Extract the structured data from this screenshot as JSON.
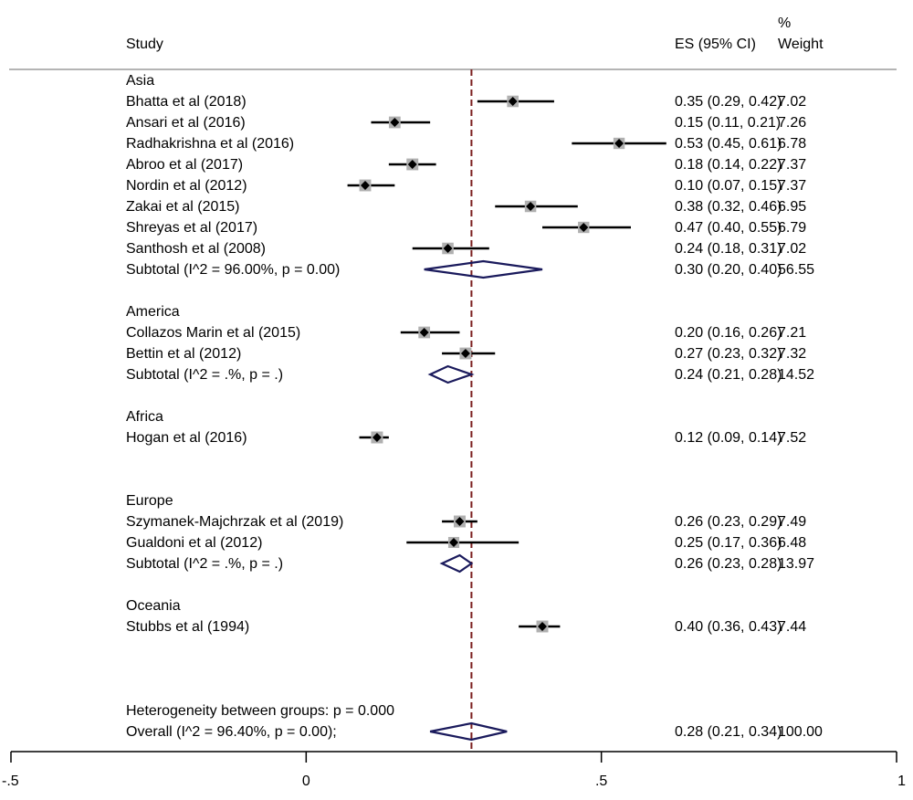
{
  "header": {
    "study_label": "Study",
    "es_label": "ES (95% CI)",
    "weight_label_line1": "%",
    "weight_label_line2": "Weight"
  },
  "chart_data": {
    "type": "forest",
    "x_ticks": [
      "-.5",
      "0",
      ".5",
      "1"
    ],
    "xlim": [
      -0.5,
      1.0
    ],
    "reference_line": 0.28,
    "colors": {
      "box": "#b0b0b0",
      "point": "#000000",
      "ci": "#000000",
      "diamond": "#1a1a5c",
      "ref_line": "#7b1f1f",
      "rule": "#b4b4b4"
    },
    "groups": [
      {
        "name": "Asia",
        "studies": [
          {
            "label": "Bhatta et al (2018)",
            "es": 0.35,
            "lo": 0.29,
            "hi": 0.42,
            "weight": 7.02,
            "es_text": "0.35 (0.29, 0.42)",
            "weight_text": "7.02"
          },
          {
            "label": "Ansari et al (2016)",
            "es": 0.15,
            "lo": 0.11,
            "hi": 0.21,
            "weight": 7.26,
            "es_text": "0.15 (0.11, 0.21)",
            "weight_text": "7.26"
          },
          {
            "label": "Radhakrishna et al (2016)",
            "es": 0.53,
            "lo": 0.45,
            "hi": 0.61,
            "weight": 6.78,
            "es_text": "0.53 (0.45, 0.61)",
            "weight_text": "6.78"
          },
          {
            "label": "Abroo et al (2017)",
            "es": 0.18,
            "lo": 0.14,
            "hi": 0.22,
            "weight": 7.37,
            "es_text": "0.18 (0.14, 0.22)",
            "weight_text": "7.37"
          },
          {
            "label": "Nordin et al (2012)",
            "es": 0.1,
            "lo": 0.07,
            "hi": 0.15,
            "weight": 7.37,
            "es_text": "0.10 (0.07, 0.15)",
            "weight_text": "7.37"
          },
          {
            "label": "Zakai et al (2015)",
            "es": 0.38,
            "lo": 0.32,
            "hi": 0.46,
            "weight": 6.95,
            "es_text": "0.38 (0.32, 0.46)",
            "weight_text": "6.95"
          },
          {
            "label": "Shreyas et al (2017)",
            "es": 0.47,
            "lo": 0.4,
            "hi": 0.55,
            "weight": 6.79,
            "es_text": "0.47 (0.40, 0.55)",
            "weight_text": "6.79"
          },
          {
            "label": "Santhosh et al (2008)",
            "es": 0.24,
            "lo": 0.18,
            "hi": 0.31,
            "weight": 7.02,
            "es_text": "0.24 (0.18, 0.31)",
            "weight_text": "7.02"
          }
        ],
        "subtotal": {
          "label": "Subtotal  (I^2 = 96.00%, p = 0.00)",
          "es": 0.3,
          "lo": 0.2,
          "hi": 0.4,
          "es_text": "0.30 (0.20, 0.40)",
          "weight_text": "56.55"
        }
      },
      {
        "name": "America",
        "studies": [
          {
            "label": "Collazos Marin et al (2015)",
            "es": 0.2,
            "lo": 0.16,
            "hi": 0.26,
            "weight": 7.21,
            "es_text": "0.20 (0.16, 0.26)",
            "weight_text": "7.21"
          },
          {
            "label": "Bettin et al (2012)",
            "es": 0.27,
            "lo": 0.23,
            "hi": 0.32,
            "weight": 7.32,
            "es_text": "0.27 (0.23, 0.32)",
            "weight_text": "7.32"
          }
        ],
        "subtotal": {
          "label": "Subtotal  (I^2 = .%, p = .)",
          "es": 0.24,
          "lo": 0.21,
          "hi": 0.28,
          "es_text": "0.24 (0.21, 0.28)",
          "weight_text": "14.52"
        }
      },
      {
        "name": "Africa",
        "studies": [
          {
            "label": "Hogan et al (2016)",
            "es": 0.12,
            "lo": 0.09,
            "hi": 0.14,
            "weight": 7.52,
            "es_text": "0.12 (0.09, 0.14)",
            "weight_text": "7.52"
          }
        ],
        "subtotal": null
      },
      {
        "name": "Europe",
        "studies": [
          {
            "label": "Szymanek-Majchrzak et al (2019)",
            "es": 0.26,
            "lo": 0.23,
            "hi": 0.29,
            "weight": 7.49,
            "es_text": "0.26 (0.23, 0.29)",
            "weight_text": "7.49"
          },
          {
            "label": "Gualdoni et al (2012)",
            "es": 0.25,
            "lo": 0.17,
            "hi": 0.36,
            "weight": 6.48,
            "es_text": "0.25 (0.17, 0.36)",
            "weight_text": "6.48"
          }
        ],
        "subtotal": {
          "label": "Subtotal  (I^2 = .%, p = .)",
          "es": 0.26,
          "lo": 0.23,
          "hi": 0.28,
          "es_text": "0.26 (0.23, 0.28)",
          "weight_text": "13.97"
        }
      },
      {
        "name": "Oceania",
        "studies": [
          {
            "label": "Stubbs et al (1994)",
            "es": 0.4,
            "lo": 0.36,
            "hi": 0.43,
            "weight": 7.44,
            "es_text": "0.40 (0.36, 0.43)",
            "weight_text": "7.44"
          }
        ],
        "subtotal": null
      }
    ],
    "heterogeneity_label": "Heterogeneity between groups: p = 0.000",
    "overall": {
      "label": "Overall  (I^2 = 96.40%, p = 0.00);",
      "es": 0.28,
      "lo": 0.21,
      "hi": 0.34,
      "es_text": "0.28 (0.21, 0.34)",
      "weight_text": "100.00"
    }
  }
}
